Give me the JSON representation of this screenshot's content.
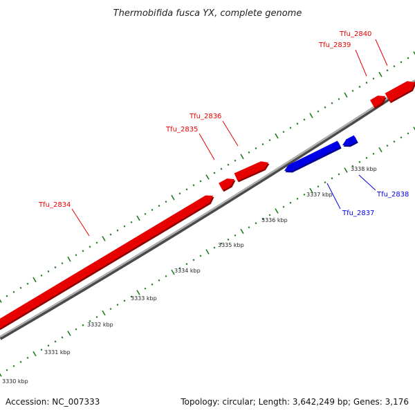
{
  "title": "Thermobifida fusca YX, complete genome",
  "footer": {
    "accession": "Accession: NC_007333",
    "summary": "Topology: circular; Length: 3,642,249 bp; Genes: 3,176"
  },
  "colors": {
    "forward": "#e60000",
    "reverse": "#0000e6",
    "backbone": "#8c8c8c",
    "tick": "#1f7a1f"
  },
  "scale_labels": [
    "3330 kbp",
    "3331 kbp",
    "3332 kbp",
    "3333 kbp",
    "3334 kbp",
    "3335 kbp",
    "3336 kbp",
    "3337 kbp",
    "3338 kbp"
  ],
  "genes": [
    {
      "name": "Tfu_2834",
      "strand": "+"
    },
    {
      "name": "Tfu_2835",
      "strand": "+"
    },
    {
      "name": "Tfu_2836",
      "strand": "+"
    },
    {
      "name": "Tfu_2837",
      "strand": "-"
    },
    {
      "name": "Tfu_2838",
      "strand": "-"
    },
    {
      "name": "Tfu_2839",
      "strand": "+"
    },
    {
      "name": "Tfu_2840",
      "strand": "+"
    }
  ]
}
